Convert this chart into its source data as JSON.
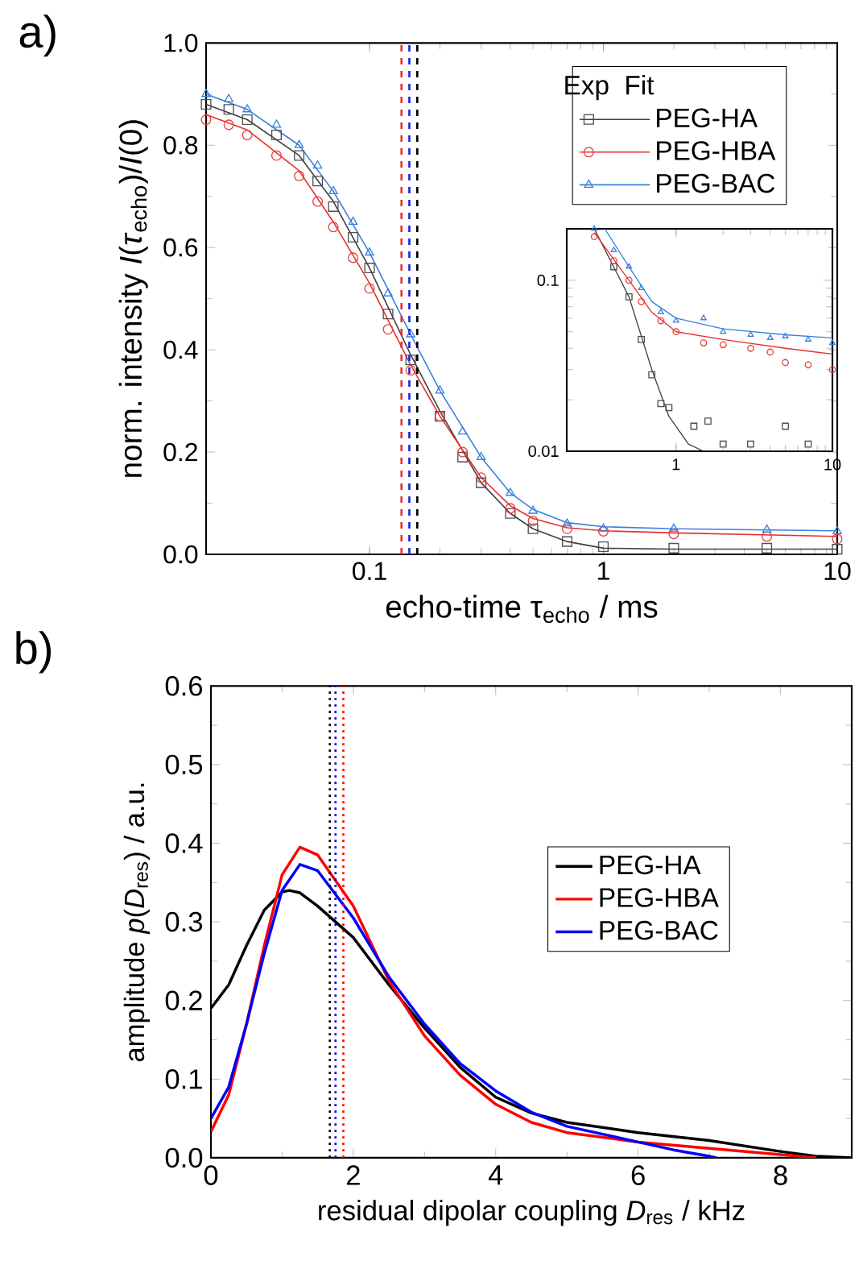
{
  "chart_data": [
    {
      "type": "scatter",
      "title": "a)",
      "xlabel": "echo-time τ$_{echo}$ / ms",
      "ylabel": "norm. intensity *I*(*τ*$_{echo}$)/*I*(0)",
      "log": "x",
      "legend": "top right",
      "annotations": [
        "Exp",
        "Fit"
      ],
      "xlim": [
        0.02,
        10
      ],
      "ylim": [
        0,
        1.0
      ],
      "xticks": [
        0.1,
        1,
        10
      ],
      "yticks": [
        {
          "value": 0,
          "label": "0.0"
        },
        {
          "value": 0.2,
          "label": "0.2"
        },
        {
          "value": 0.4,
          "label": "0.4"
        },
        {
          "value": 0.6,
          "label": "0.6"
        },
        {
          "value": 0.8,
          "label": "0.8"
        },
        {
          "value": 1.0,
          "label": "1.0"
        }
      ],
      "series": [
        {
          "type": "scatter",
          "name": "PEG-HA",
          "marker": "square",
          "color": "#505050",
          "x": [
            0.02,
            0.025,
            0.03,
            0.04,
            0.05,
            0.06,
            0.07,
            0.085,
            0.1,
            0.12,
            0.15,
            0.2,
            0.25,
            0.3,
            0.4,
            0.5,
            0.7,
            1,
            2,
            5,
            10
          ],
          "values": [
            0.88,
            0.87,
            0.85,
            0.82,
            0.78,
            0.73,
            0.68,
            0.62,
            0.56,
            0.47,
            0.38,
            0.27,
            0.19,
            0.14,
            0.08,
            0.05,
            0.025,
            0.015,
            0.012,
            0.012,
            0.01
          ]
        },
        {
          "type": "scatter",
          "name": "PEG-HBA",
          "marker": "circle",
          "color": "#e84040",
          "x": [
            0.02,
            0.025,
            0.03,
            0.04,
            0.05,
            0.06,
            0.07,
            0.085,
            0.1,
            0.12,
            0.15,
            0.2,
            0.25,
            0.3,
            0.4,
            0.5,
            0.7,
            1,
            2,
            5,
            10
          ],
          "values": [
            0.85,
            0.84,
            0.82,
            0.78,
            0.74,
            0.69,
            0.64,
            0.58,
            0.52,
            0.44,
            0.36,
            0.27,
            0.2,
            0.15,
            0.09,
            0.065,
            0.05,
            0.045,
            0.04,
            0.035,
            0.03
          ]
        },
        {
          "type": "scatter",
          "name": "PEG-BAC",
          "marker": "triangle",
          "color": "#3a80dd",
          "x": [
            0.02,
            0.025,
            0.03,
            0.04,
            0.05,
            0.06,
            0.07,
            0.085,
            0.1,
            0.12,
            0.15,
            0.2,
            0.25,
            0.3,
            0.4,
            0.5,
            0.7,
            1,
            2,
            5,
            10
          ],
          "values": [
            0.9,
            0.89,
            0.87,
            0.84,
            0.8,
            0.76,
            0.71,
            0.65,
            0.59,
            0.51,
            0.43,
            0.32,
            0.24,
            0.19,
            0.12,
            0.085,
            0.06,
            0.05,
            0.05,
            0.048,
            0.045
          ]
        },
        {
          "type": "line",
          "color": "#404040",
          "x": [
            0.02,
            0.03,
            0.05,
            0.07,
            0.1,
            0.15,
            0.2,
            0.3,
            0.4,
            0.5,
            0.7,
            1,
            2,
            10
          ],
          "values": [
            0.88,
            0.85,
            0.78,
            0.69,
            0.56,
            0.39,
            0.28,
            0.14,
            0.08,
            0.05,
            0.025,
            0.012,
            0.01,
            0.01
          ]
        },
        {
          "type": "line",
          "color": "#e83030",
          "x": [
            0.02,
            0.03,
            0.05,
            0.07,
            0.1,
            0.15,
            0.2,
            0.3,
            0.4,
            0.5,
            0.7,
            1,
            2,
            10
          ],
          "values": [
            0.86,
            0.83,
            0.75,
            0.65,
            0.53,
            0.37,
            0.27,
            0.15,
            0.095,
            0.07,
            0.052,
            0.046,
            0.042,
            0.035
          ]
        },
        {
          "type": "line",
          "color": "#3a80dd",
          "x": [
            0.02,
            0.03,
            0.05,
            0.07,
            0.1,
            0.15,
            0.2,
            0.3,
            0.4,
            0.5,
            0.7,
            1,
            2,
            10
          ],
          "values": [
            0.9,
            0.87,
            0.8,
            0.71,
            0.59,
            0.43,
            0.32,
            0.19,
            0.12,
            0.088,
            0.062,
            0.054,
            0.05,
            0.046
          ]
        }
      ],
      "ref_lines": [
        {
          "axis": "x",
          "value": 0.137,
          "color": "#e83030",
          "line_style": "dashed"
        },
        {
          "axis": "x",
          "value": 0.148,
          "color": "#2020ee",
          "line_style": "dashed"
        },
        {
          "axis": "x",
          "value": 0.16,
          "color": "#000000",
          "line_style": "dashed"
        }
      ]
    },
    {
      "type": "scatter",
      "log": "xy",
      "xlim": [
        0.2,
        10
      ],
      "ylim": [
        0.01,
        0.2
      ],
      "xticks": [
        1,
        10
      ],
      "yticks": [
        0.01,
        0.1
      ],
      "series": [
        {
          "type": "scatter",
          "marker": "square",
          "color": "#505050",
          "x": [
            0.4,
            0.5,
            0.6,
            0.7,
            0.8,
            0.9,
            1.3,
            1.6,
            2,
            3,
            5,
            7
          ],
          "values": [
            0.12,
            0.08,
            0.045,
            0.028,
            0.019,
            0.018,
            0.014,
            0.015,
            0.011,
            0.011,
            0.014,
            0.011
          ]
        },
        {
          "type": "scatter",
          "marker": "circle",
          "color": "#e84040",
          "x": [
            0.3,
            0.4,
            0.5,
            0.6,
            0.8,
            1,
            1.5,
            2,
            3,
            4,
            5,
            7,
            10
          ],
          "values": [
            0.18,
            0.13,
            0.1,
            0.075,
            0.058,
            0.05,
            0.043,
            0.042,
            0.04,
            0.038,
            0.033,
            0.032,
            0.03
          ]
        },
        {
          "type": "scatter",
          "marker": "triangle",
          "color": "#3a80dd",
          "x": [
            0.3,
            0.4,
            0.5,
            0.6,
            0.8,
            1,
            1.5,
            2,
            3,
            4,
            5,
            7,
            10
          ],
          "values": [
            0.2,
            0.15,
            0.12,
            0.09,
            0.065,
            0.058,
            0.06,
            0.05,
            0.048,
            0.046,
            0.047,
            0.045,
            0.043
          ]
        },
        {
          "type": "line",
          "color": "#404040",
          "x": [
            0.3,
            0.5,
            0.7,
            0.9,
            1.2,
            1.5,
            10
          ],
          "values": [
            0.2,
            0.08,
            0.03,
            0.016,
            0.011,
            0.01,
            0.01
          ]
        },
        {
          "type": "line",
          "color": "#e83030",
          "x": [
            0.3,
            0.5,
            0.7,
            1,
            2,
            5,
            10
          ],
          "values": [
            0.19,
            0.1,
            0.065,
            0.05,
            0.045,
            0.04,
            0.037
          ]
        },
        {
          "type": "line",
          "color": "#3a80dd",
          "x": [
            0.35,
            0.5,
            0.7,
            1,
            2,
            5,
            10
          ],
          "values": [
            0.2,
            0.12,
            0.075,
            0.06,
            0.052,
            0.048,
            0.046
          ]
        }
      ]
    },
    {
      "type": "line",
      "title": "b)",
      "xlabel": "residual dipolar coupling *D*$_{res}$  /  kHz",
      "ylabel": "amplitude *p*(*D*$_{res}$)  / a.u.",
      "legend": "right",
      "xlim": [
        0,
        9
      ],
      "ylim": [
        0,
        0.6
      ],
      "xticks": [
        0,
        2,
        4,
        6,
        8
      ],
      "yticks": [
        {
          "value": 0,
          "label": "0.0"
        },
        {
          "value": 0.1,
          "label": "0.1"
        },
        {
          "value": 0.2,
          "label": "0.2"
        },
        {
          "value": 0.3,
          "label": "0.3"
        },
        {
          "value": 0.4,
          "label": "0.4"
        },
        {
          "value": 0.5,
          "label": "0.5"
        },
        {
          "value": 0.6,
          "label": "0.6"
        }
      ],
      "series": [
        {
          "name": "PEG-HA",
          "color": "#000000",
          "x": [
            0,
            0.25,
            0.5,
            0.75,
            1.0,
            1.1,
            1.25,
            1.5,
            2.0,
            2.5,
            3.0,
            3.5,
            4.0,
            4.5,
            5.0,
            6.0,
            7.0,
            8.0,
            8.5,
            9.0
          ],
          "values": [
            0.19,
            0.22,
            0.27,
            0.315,
            0.338,
            0.34,
            0.337,
            0.32,
            0.28,
            0.22,
            0.165,
            0.115,
            0.077,
            0.057,
            0.045,
            0.032,
            0.022,
            0.008,
            0.002,
            0
          ]
        },
        {
          "name": "PEG-HBA",
          "color": "#ff0000",
          "x": [
            0,
            0.25,
            0.5,
            0.75,
            1.0,
            1.25,
            1.5,
            2.0,
            2.5,
            3.0,
            3.5,
            4.0,
            4.5,
            5.0,
            6.0,
            7.0,
            8.0,
            8.5
          ],
          "values": [
            0.033,
            0.08,
            0.17,
            0.27,
            0.36,
            0.395,
            0.385,
            0.32,
            0.225,
            0.155,
            0.105,
            0.068,
            0.045,
            0.032,
            0.02,
            0.012,
            0.004,
            0
          ]
        },
        {
          "name": "PEG-BAC",
          "color": "#0000ff",
          "x": [
            0,
            0.25,
            0.5,
            0.75,
            1.0,
            1.25,
            1.5,
            2.0,
            2.5,
            3.0,
            3.5,
            4.0,
            4.5,
            5.0,
            6.0,
            6.5,
            7.0,
            7.1
          ],
          "values": [
            0.05,
            0.09,
            0.17,
            0.26,
            0.34,
            0.373,
            0.365,
            0.305,
            0.23,
            0.17,
            0.12,
            0.085,
            0.058,
            0.04,
            0.02,
            0.01,
            0.002,
            0
          ]
        }
      ],
      "ref_lines": [
        {
          "axis": "x",
          "value": 1.67,
          "color": "#000000",
          "line_style": "dotted"
        },
        {
          "axis": "x",
          "value": 1.75,
          "color": "#0000ff",
          "line_style": "dotted"
        },
        {
          "axis": "x",
          "value": 1.86,
          "color": "#ff0000",
          "line_style": "dotted"
        }
      ]
    }
  ]
}
